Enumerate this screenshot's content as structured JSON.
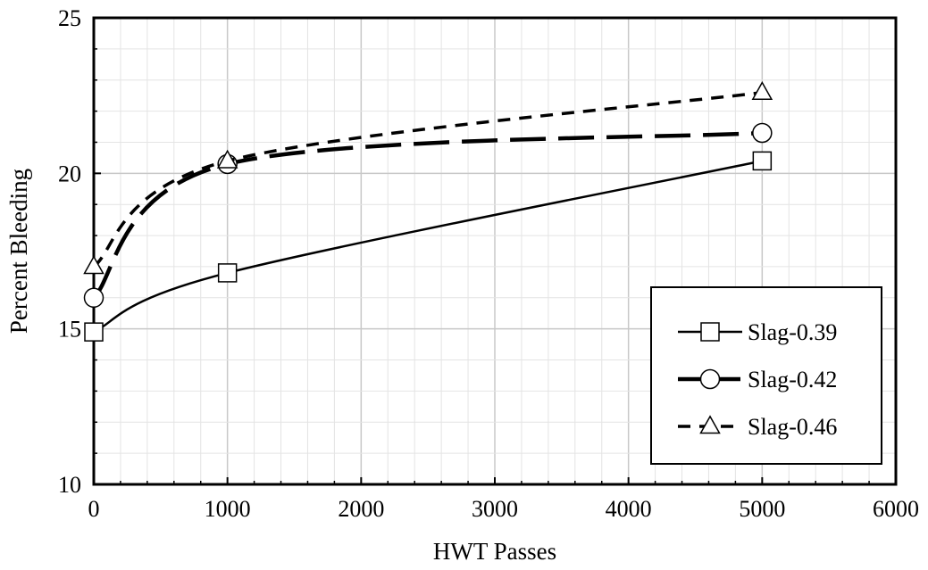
{
  "chart_data": {
    "type": "line",
    "title": "",
    "xlabel": "HWT Passes",
    "ylabel": "Percent Bleeding",
    "xlim": [
      0,
      6000
    ],
    "ylim": [
      10,
      25
    ],
    "x_ticks": [
      0,
      1000,
      2000,
      3000,
      4000,
      5000,
      6000
    ],
    "y_ticks": [
      10,
      15,
      20,
      25
    ],
    "grid": true,
    "legend_position": "bottom-right",
    "series": [
      {
        "name": "Slag-0.39",
        "marker": "square",
        "line_style": "solid",
        "x": [
          0,
          1000,
          5000
        ],
        "y": [
          14.9,
          16.8,
          20.4
        ]
      },
      {
        "name": "Slag-0.42",
        "marker": "circle",
        "line_style": "long-dash",
        "x": [
          0,
          1000,
          5000
        ],
        "y": [
          16.0,
          20.3,
          21.3
        ]
      },
      {
        "name": "Slag-0.46",
        "marker": "triangle",
        "line_style": "dash",
        "x": [
          0,
          1000,
          5000
        ],
        "y": [
          17.0,
          20.4,
          22.6
        ]
      }
    ]
  }
}
